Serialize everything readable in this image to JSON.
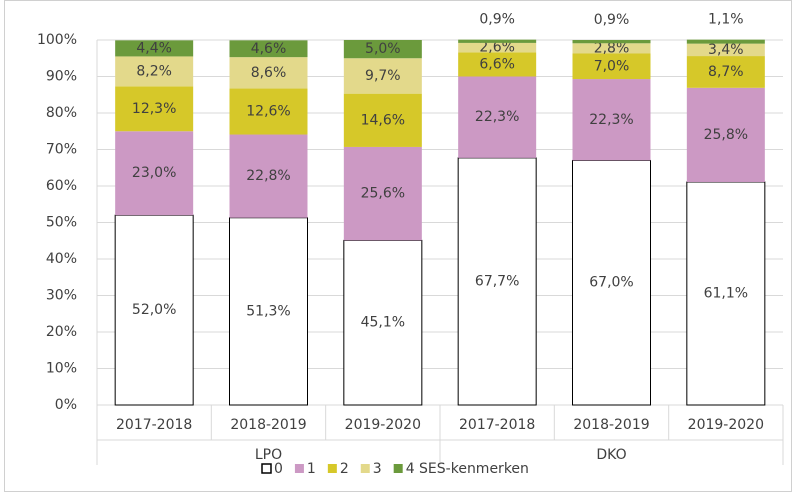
{
  "chart_data": {
    "type": "stacked-bar",
    "categories": [
      "2017-2018",
      "2018-2019",
      "2019-2020",
      "2017-2018",
      "2018-2019",
      "2019-2020"
    ],
    "groups": [
      {
        "label": "LPO",
        "size": 3
      },
      {
        "label": "DKO",
        "size": 3
      }
    ],
    "series": [
      {
        "name": "0",
        "color": "#ffffff",
        "values": [
          52.0,
          51.3,
          45.1,
          67.7,
          67.0,
          61.1
        ],
        "value_labels": [
          "52,0%",
          "51,3%",
          "45,1%",
          "67,7%",
          "67,0%",
          "61,1%"
        ]
      },
      {
        "name": "1",
        "color": "#cc99c4",
        "values": [
          23.0,
          22.8,
          25.6,
          22.3,
          22.3,
          25.8
        ],
        "value_labels": [
          "23,0%",
          "22,8%",
          "25,6%",
          "22,3%",
          "22,3%",
          "25,8%"
        ]
      },
      {
        "name": "2",
        "color": "#d6c829",
        "values": [
          12.3,
          12.6,
          14.6,
          6.6,
          7.0,
          8.7
        ],
        "value_labels": [
          "12,3%",
          "12,6%",
          "14,6%",
          "6,6%",
          "7,0%",
          "8,7%"
        ]
      },
      {
        "name": "3",
        "color": "#e3d98b",
        "values": [
          8.2,
          8.6,
          9.7,
          2.6,
          2.8,
          3.4
        ],
        "value_labels": [
          "8,2%",
          "8,6%",
          "9,7%",
          "2,6%",
          "2,8%",
          "3,4%"
        ]
      },
      {
        "name": "4 SES-kenmerken",
        "color": "#6b9a3c",
        "values": [
          4.4,
          4.6,
          5.0,
          0.9,
          0.9,
          1.1
        ],
        "value_labels": [
          "4,4%",
          "4,6%",
          "5,0%",
          "0,9%",
          "0,9%",
          "1,1%"
        ]
      }
    ],
    "ylim": [
      0,
      100
    ],
    "yticks": [
      {
        "value": 0,
        "label": "0%"
      },
      {
        "value": 10,
        "label": "10%"
      },
      {
        "value": 20,
        "label": "20%"
      },
      {
        "value": 30,
        "label": "30%"
      },
      {
        "value": 40,
        "label": "40%"
      },
      {
        "value": 50,
        "label": "50%"
      },
      {
        "value": 60,
        "label": "60%"
      },
      {
        "value": 70,
        "label": "70%"
      },
      {
        "value": 80,
        "label": "80%"
      },
      {
        "value": 90,
        "label": "90%"
      },
      {
        "value": 100,
        "label": "100%"
      }
    ],
    "grid": true,
    "legend": "bottom"
  }
}
